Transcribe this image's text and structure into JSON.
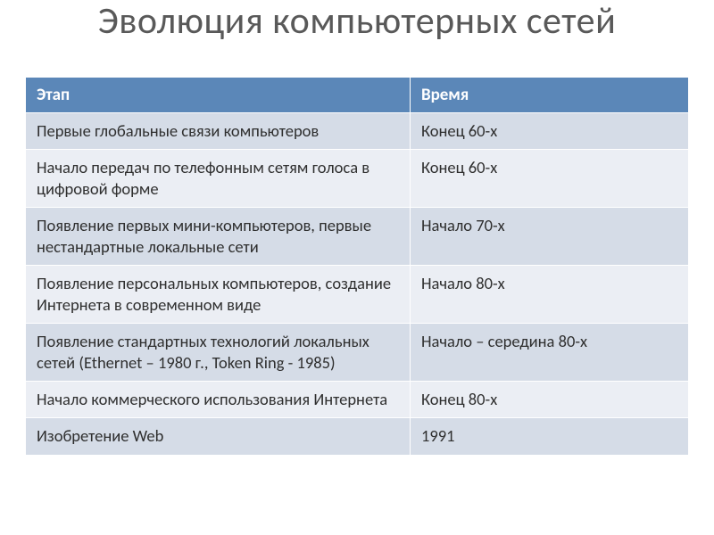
{
  "title": "Эволюция компьютерных сетей",
  "table": {
    "type": "table",
    "header_bg": "#5b87b8",
    "header_fg": "#ffffff",
    "row_odd_bg": "#d5dce7",
    "row_even_bg": "#ebeef4",
    "text_color": "#2f2f2f",
    "border_color": "#ffffff",
    "font_size": 18.5,
    "header_font_size": 19,
    "columns": [
      {
        "label": "Этап",
        "width_pct": 58
      },
      {
        "label": "Время",
        "width_pct": 42
      }
    ],
    "rows": [
      {
        "stage": "Первые глобальные связи компьютеров",
        "time": "Конец 60-х"
      },
      {
        "stage": "Начало передач по телефонным сетям голоса в цифровой форме",
        "time": "Конец 60-х"
      },
      {
        "stage": "Появление первых мини-компьютеров, первые нестандартные локальные сети",
        "time": "Начало 70-х"
      },
      {
        "stage": "Появление персональных компьютеров, создание Интернета в современном виде",
        "time": "Начало 80-х"
      },
      {
        "stage": "Появление стандартных технологий локальных сетей (Ethernet – 1980 г., Token Ring - 1985)",
        "time": "Начало – середина 80-х"
      },
      {
        "stage": "Начало коммерческого использования Интернета",
        "time": "Конец 80-х"
      },
      {
        "stage": "Изобретение Web",
        "time": "1991"
      }
    ]
  },
  "title_color": "#595959",
  "title_fontsize": 42,
  "background_color": "#ffffff"
}
